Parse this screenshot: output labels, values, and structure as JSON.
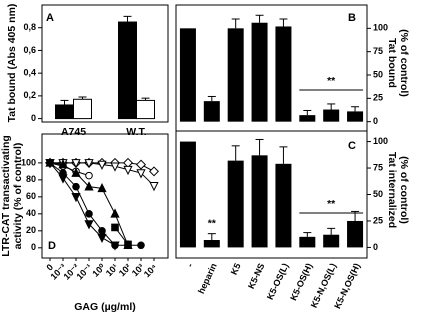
{
  "chart_data": [
    {
      "type": "bar",
      "label": "A",
      "ylabel": "Tat bound (Abs 405 nm)",
      "categories": [
        "A745",
        "W.T."
      ],
      "series": [
        {
          "color": "#000000",
          "values": [
            0.12,
            0.85
          ],
          "errors": [
            0.04,
            0.05
          ]
        },
        {
          "color": "#ffffff",
          "values": [
            0.17,
            0.16
          ],
          "errors": [
            0.02,
            0.02
          ]
        }
      ],
      "ylim": [
        -0.03,
        1.0
      ],
      "yticks": [
        0,
        {
          "value": 0.2,
          "label": "0,2"
        },
        {
          "value": 0.4,
          "label": "0,4"
        },
        {
          "value": 0.6,
          "label": "0,6"
        },
        {
          "value": 0.8,
          "label": "0,8"
        }
      ]
    },
    {
      "type": "bar",
      "label": "B",
      "ylabel": [
        "Tat bound",
        "(% of control)"
      ],
      "values": [
        100,
        22,
        100,
        106,
        102,
        7,
        13,
        11
      ],
      "errors": [
        0,
        5,
        10,
        8,
        8,
        5,
        6,
        5
      ],
      "color": "#000000",
      "ylim": [
        -10,
        125
      ],
      "yticks": [
        0,
        25,
        50,
        75,
        100
      ],
      "annotations": [
        "**"
      ]
    },
    {
      "type": "bar",
      "label": "C",
      "ylabel": [
        "Tat internalized",
        "(% of control)"
      ],
      "categories": [
        "-",
        "heparin",
        "K5",
        "K5-NS",
        "K5-OS(L)",
        "K5-OS(H)",
        "K5-N,OS(L)",
        "K5-N,OS(H)"
      ],
      "values": [
        100,
        7,
        82,
        87,
        79,
        10,
        12,
        25
      ],
      "errors": [
        0,
        6,
        14,
        15,
        16,
        4,
        6,
        9
      ],
      "color": "#000000",
      "ylim": [
        -10,
        110
      ],
      "yticks": [
        0,
        25,
        50,
        75,
        100
      ],
      "annotations": [
        "**",
        "**"
      ]
    },
    {
      "type": "line",
      "label": "D",
      "ylabel": [
        "LTR-CAT transactivating",
        "activity (% of control)"
      ],
      "xlabel": "GAG (µg/ml)",
      "categories": [
        "0",
        "10⁻³",
        "10⁻²",
        "10⁻¹",
        "10⁰",
        "10¹",
        "10²",
        "10³",
        "10⁴"
      ],
      "series": [
        {
          "marker": "diamond-open",
          "color": "#000000",
          "values": [
            100,
            100,
            100,
            100,
            100,
            100,
            100,
            98,
            90
          ]
        },
        {
          "marker": "triangle-down-open",
          "color": "#000000",
          "values": [
            100,
            100,
            100,
            100,
            98,
            96,
            92,
            88,
            73
          ]
        },
        {
          "marker": "circle-open",
          "color": "#000000",
          "values": [
            100,
            96,
            90,
            85,
            null,
            null,
            null,
            null,
            null
          ]
        },
        {
          "marker": "triangle-up-filled",
          "color": "#000000",
          "values": [
            100,
            98,
            88,
            72,
            70,
            40,
            3,
            null,
            null
          ]
        },
        {
          "marker": "circle-filled",
          "color": "#000000",
          "values": [
            100,
            88,
            72,
            40,
            20,
            3,
            3,
            3,
            null
          ]
        },
        {
          "marker": "triangle-down-filled",
          "color": "#000000",
          "values": [
            100,
            82,
            60,
            28,
            12,
            3,
            null,
            null,
            null
          ]
        },
        {
          "marker": "square-filled",
          "color": "#000000",
          "values": [
            null,
            null,
            null,
            null,
            null,
            24,
            4,
            null,
            null
          ]
        }
      ],
      "ylim": [
        -12,
        134
      ],
      "yticks": [
        0,
        20,
        40,
        60,
        80,
        100
      ]
    }
  ]
}
